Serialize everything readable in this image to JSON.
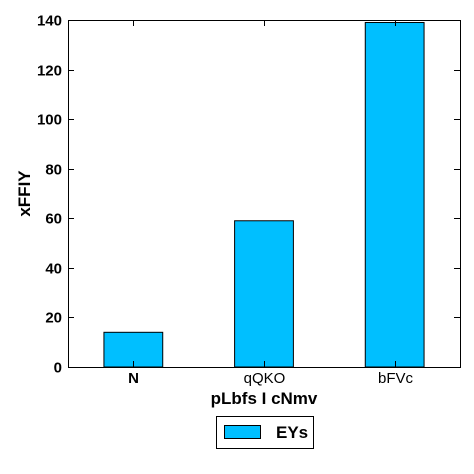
{
  "chart_data": {
    "type": "bar",
    "categories": [
      "N",
      "qQKO",
      "bFVc"
    ],
    "series": [
      {
        "name": "EYs",
        "values": [
          14,
          59,
          139
        ],
        "color": "#00bfff"
      }
    ],
    "xlabel": "pLbfs I  cNmv",
    "ylabel": "xFFIY",
    "ylim": [
      0,
      140
    ],
    "yticks": [
      0,
      20,
      40,
      60,
      80,
      100,
      120,
      140
    ],
    "grid": false,
    "legend_position": "bottom-center"
  }
}
